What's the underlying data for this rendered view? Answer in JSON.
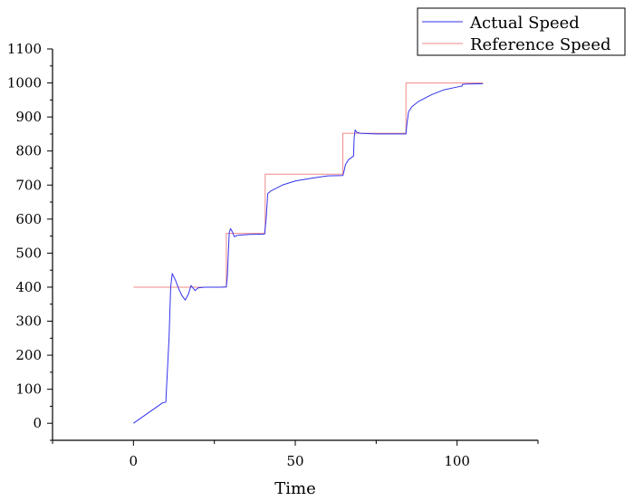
{
  "chart_data": {
    "type": "line",
    "title": "",
    "xlabel": "Time",
    "ylabel": "",
    "xlim": [
      -25,
      125
    ],
    "ylim": [
      -50,
      1100
    ],
    "x_ticks": [
      0,
      50,
      100
    ],
    "x_tick_labels": [
      "0",
      "50",
      "100"
    ],
    "y_ticks": [
      0,
      100,
      200,
      300,
      400,
      500,
      600,
      700,
      800,
      900,
      1000,
      1100
    ],
    "y_tick_labels": [
      "0",
      "100",
      "200",
      "300",
      "400",
      "500",
      "600",
      "700",
      "800",
      "900",
      "1000",
      "1100"
    ],
    "grid": false,
    "legend_position": "top-right",
    "series": [
      {
        "name": "Actual Speed",
        "color": "#3333ee",
        "points": [
          [
            0,
            0
          ],
          [
            9,
            60
          ],
          [
            10,
            62
          ],
          [
            11,
            250
          ],
          [
            11.5,
            400
          ],
          [
            12,
            440
          ],
          [
            13,
            420
          ],
          [
            14,
            395
          ],
          [
            15,
            375
          ],
          [
            16,
            362
          ],
          [
            17,
            380
          ],
          [
            17.8,
            405
          ],
          [
            19,
            390
          ],
          [
            20,
            398
          ],
          [
            22,
            400
          ],
          [
            27,
            400
          ],
          [
            28.7,
            401
          ],
          [
            29,
            430
          ],
          [
            29.6,
            560
          ],
          [
            30,
            572
          ],
          [
            30.6,
            562
          ],
          [
            31.2,
            548
          ],
          [
            32,
            552
          ],
          [
            33,
            553
          ],
          [
            36,
            555
          ],
          [
            40.5,
            556
          ],
          [
            41,
            600
          ],
          [
            41.5,
            675
          ],
          [
            42.5,
            683
          ],
          [
            44,
            690
          ],
          [
            46,
            700
          ],
          [
            50,
            712
          ],
          [
            55,
            720
          ],
          [
            60,
            727
          ],
          [
            64.7,
            728
          ],
          [
            65,
            738
          ],
          [
            65.5,
            760
          ],
          [
            66.5,
            775
          ],
          [
            68,
            785
          ],
          [
            68.2,
            838
          ],
          [
            68.5,
            862
          ],
          [
            69,
            855
          ],
          [
            70,
            852
          ],
          [
            75,
            850
          ],
          [
            84.2,
            850
          ],
          [
            84.5,
            880
          ],
          [
            85,
            915
          ],
          [
            86,
            930
          ],
          [
            88,
            945
          ],
          [
            92,
            965
          ],
          [
            96,
            980
          ],
          [
            100,
            988
          ],
          [
            101.5,
            991
          ],
          [
            101.7,
            996
          ],
          [
            103,
            997
          ],
          [
            108,
            998
          ]
        ]
      },
      {
        "name": "Reference Speed",
        "color": "#f08a8a",
        "points": [
          [
            0,
            400
          ],
          [
            28.7,
            400
          ],
          [
            28.7,
            558
          ],
          [
            40.7,
            558
          ],
          [
            40.7,
            732
          ],
          [
            64.7,
            732
          ],
          [
            64.7,
            852
          ],
          [
            84.2,
            852
          ],
          [
            84.2,
            1000
          ],
          [
            108,
            1000
          ]
        ]
      }
    ]
  }
}
